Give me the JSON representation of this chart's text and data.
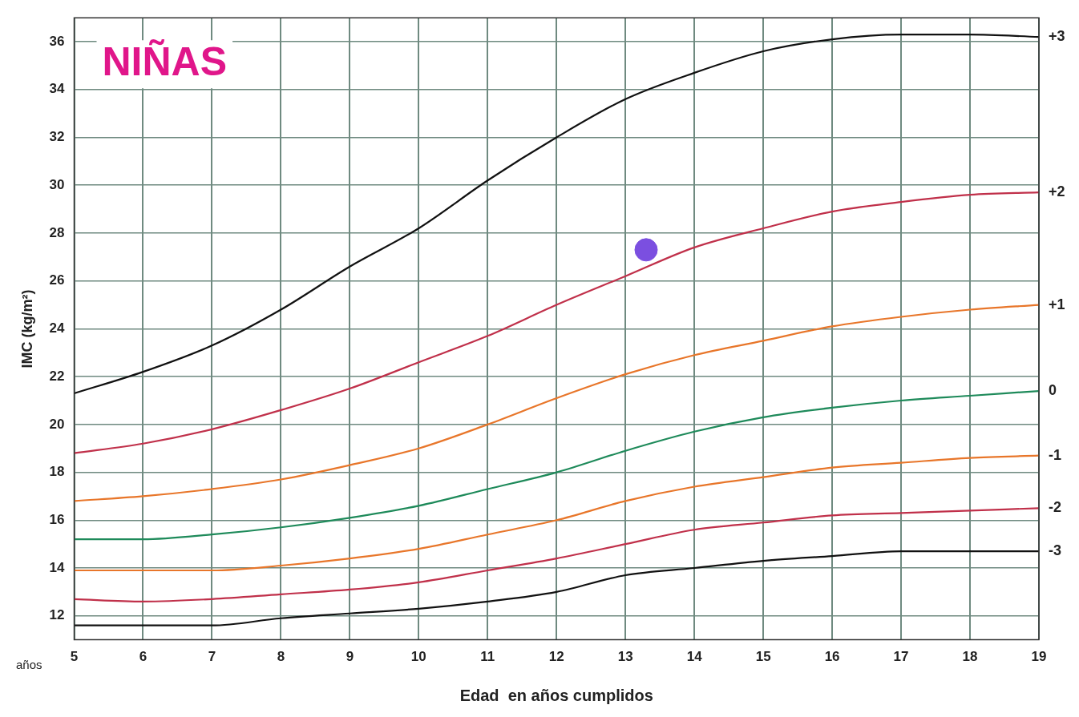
{
  "chart_data": {
    "type": "line",
    "title": "NIÑAS",
    "xlabel": "Edad  en años cumplidos",
    "ylabel": "IMC (kg/m²)",
    "annotations": [
      "años"
    ],
    "x": [
      5,
      6,
      7,
      8,
      9,
      10,
      11,
      12,
      13,
      14,
      15,
      16,
      17,
      18,
      19
    ],
    "series": [
      {
        "name": "+3",
        "color": "#111111",
        "values": [
          21.3,
          22.2,
          23.3,
          24.8,
          26.6,
          28.2,
          30.2,
          32.0,
          33.6,
          34.7,
          35.6,
          36.1,
          36.3,
          36.3,
          36.2
        ]
      },
      {
        "name": "+2",
        "color": "#c0304a",
        "values": [
          18.8,
          19.2,
          19.8,
          20.6,
          21.5,
          22.6,
          23.7,
          25.0,
          26.2,
          27.4,
          28.2,
          28.9,
          29.3,
          29.6,
          29.7
        ]
      },
      {
        "name": "+1",
        "color": "#e8762a",
        "values": [
          16.8,
          17.0,
          17.3,
          17.7,
          18.3,
          19.0,
          20.0,
          21.1,
          22.1,
          22.9,
          23.5,
          24.1,
          24.5,
          24.8,
          25.0
        ]
      },
      {
        "name": "0",
        "color": "#1e8a5a",
        "values": [
          15.2,
          15.2,
          15.4,
          15.7,
          16.1,
          16.6,
          17.3,
          18.0,
          18.9,
          19.7,
          20.3,
          20.7,
          21.0,
          21.2,
          21.4
        ]
      },
      {
        "name": "-1",
        "color": "#e8762a",
        "values": [
          13.9,
          13.9,
          13.9,
          14.1,
          14.4,
          14.8,
          15.4,
          16.0,
          16.8,
          17.4,
          17.8,
          18.2,
          18.4,
          18.6,
          18.7
        ]
      },
      {
        "name": "-2",
        "color": "#c0304a",
        "values": [
          12.7,
          12.6,
          12.7,
          12.9,
          13.1,
          13.4,
          13.9,
          14.4,
          15.0,
          15.6,
          15.9,
          16.2,
          16.3,
          16.4,
          16.5
        ]
      },
      {
        "name": "-3",
        "color": "#111111",
        "values": [
          11.6,
          11.6,
          11.6,
          11.9,
          12.1,
          12.3,
          12.6,
          13.0,
          13.7,
          14.0,
          14.3,
          14.5,
          14.7,
          14.7,
          14.7
        ]
      },
      {
        "type": "scatter",
        "marker": "circle",
        "color": "#7b4fe0",
        "x": [
          13.3
        ],
        "values": [
          27.3
        ]
      }
    ],
    "xlim": [
      5,
      19
    ],
    "xticks": [
      5,
      6,
      7,
      8,
      9,
      10,
      11,
      12,
      13,
      14,
      15,
      16,
      17,
      18,
      19
    ],
    "ylim": [
      11,
      37
    ],
    "yticks": [
      12,
      14,
      16,
      18,
      20,
      22,
      24,
      26,
      28,
      30,
      32,
      34,
      36
    ],
    "grid": true,
    "legend": false,
    "marker": "none",
    "line_style": "solid"
  }
}
